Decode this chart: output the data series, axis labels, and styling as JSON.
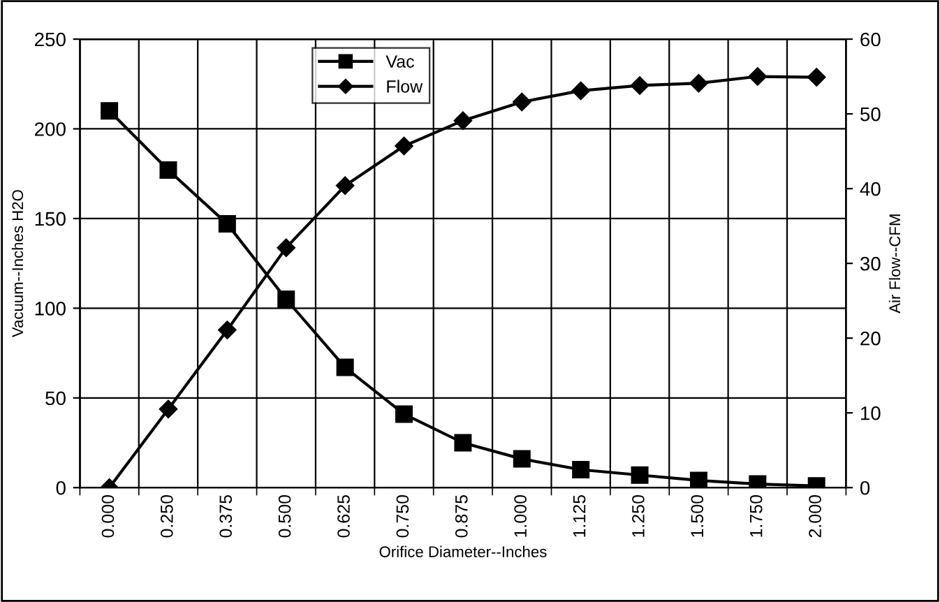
{
  "chart_data": {
    "type": "line",
    "xlabel": "Orifice Diameter--Inches",
    "ylabel": "Vacuum--Inches H2O",
    "y2label": "Air Flow--CFM",
    "categories": [
      "0.000",
      "0.250",
      "0.375",
      "0.500",
      "0.625",
      "0.750",
      "0.875",
      "1.000",
      "1.125",
      "1.250",
      "1.500",
      "1.750",
      "2.000"
    ],
    "series": [
      {
        "name": "Vac",
        "color": "#000000",
        "marker": "square",
        "values": [
          210,
          177,
          147,
          105,
          67,
          41,
          25,
          16,
          10,
          7,
          4,
          2,
          1
        ]
      },
      {
        "name": "Flow",
        "color": "#000000",
        "marker": "diamond",
        "axis": "y2",
        "values": [
          0,
          10.5,
          21.1,
          32.1,
          40.4,
          45.7,
          49.1,
          51.6,
          53.1,
          53.8,
          54.1,
          55,
          54.9
        ]
      }
    ],
    "ylim": [
      0,
      250
    ],
    "yticks": [
      0,
      50,
      100,
      150,
      200,
      250
    ],
    "y2lim": [
      0,
      60
    ],
    "y2ticks": [
      0,
      10,
      20,
      30,
      40,
      50,
      60
    ],
    "grid": true,
    "legend": "top",
    "line_style": "solid"
  }
}
